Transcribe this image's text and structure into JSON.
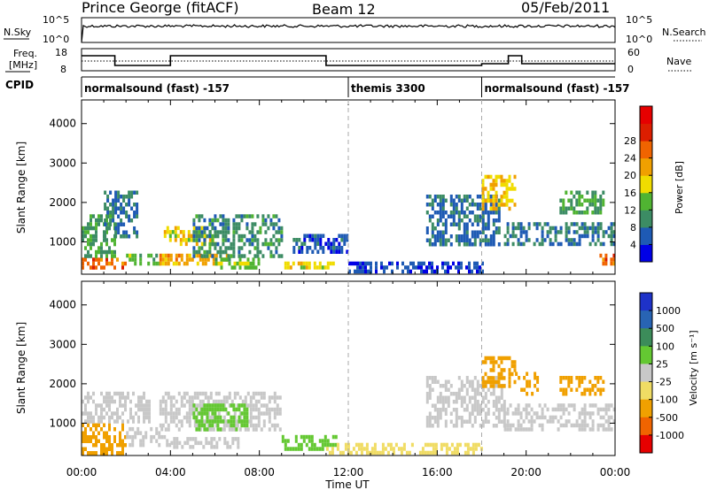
{
  "header": {
    "station": "Prince George (fitACF)",
    "beam": "Beam 12",
    "date": "05/Feb/2011"
  },
  "strip_labels": {
    "nsky": "N.Sky",
    "nsky_top": "10^5",
    "nsky_bottom": "10^0",
    "nsearch": "N.Search",
    "nsearch_top": "10^5",
    "nsearch_bottom": "10^0",
    "freq_1": "Freq.",
    "freq_2": "[MHz]",
    "freq_top": "18",
    "freq_bottom": "8",
    "nave": "Nave",
    "nave_top": "60",
    "nave_bottom": "0",
    "cpid": "CPID"
  },
  "cpid_segments": [
    {
      "start_h": 0,
      "end_h": 12,
      "label": "normalsound (fast) -157"
    },
    {
      "start_h": 12,
      "end_h": 18,
      "label": "themis 3300"
    },
    {
      "start_h": 18,
      "end_h": 24,
      "label": "normalsound (fast) -157"
    }
  ],
  "colors": {
    "power_scale": [
      "#0000e6",
      "#1e5ab4",
      "#3c8c64",
      "#50b432",
      "#f0dc00",
      "#f0a000",
      "#f06400",
      "#dc1e00",
      "#e60000"
    ],
    "velocity_scale": [
      "#1e32c8",
      "#2864b4",
      "#3c8c5a",
      "#64c832",
      "#c8c8c8",
      "#f0dc64",
      "#f0a000",
      "#f06400",
      "#e60000"
    ],
    "frequency_line": "#000000",
    "dashed_markers": "#aaaaaa"
  },
  "chart_data": [
    {
      "type": "heatmap",
      "panel": "power",
      "xlabel": "Time UT",
      "ylabel": "Slant Range [km]",
      "xlim": [
        0,
        24
      ],
      "ylim": [
        180,
        4600
      ],
      "x_ticks": [
        "00:00",
        "04:00",
        "08:00",
        "12:00",
        "16:00",
        "20:00",
        "00:00"
      ],
      "y_ticks": [
        "1000",
        "2000",
        "3000",
        "4000"
      ],
      "colorbar": {
        "label": "Power [dB]",
        "ticks": [
          "4",
          "8",
          "12",
          "16",
          "20",
          "24",
          "28"
        ],
        "range": [
          0,
          32
        ]
      },
      "regions": [
        {
          "t": [
            0.0,
            2.0
          ],
          "r": [
            300,
            600
          ],
          "v": 26
        },
        {
          "t": [
            0.0,
            1.5
          ],
          "r": [
            600,
            1700
          ],
          "v": 12
        },
        {
          "t": [
            1.0,
            2.5
          ],
          "r": [
            1100,
            2300
          ],
          "v": 8
        },
        {
          "t": [
            2.0,
            3.5
          ],
          "r": [
            400,
            700
          ],
          "v": 14
        },
        {
          "t": [
            3.5,
            6.5
          ],
          "r": [
            450,
            700
          ],
          "v": 22
        },
        {
          "t": [
            3.7,
            6.0
          ],
          "r": [
            900,
            1400
          ],
          "v": 18
        },
        {
          "t": [
            5.0,
            9.0
          ],
          "r": [
            600,
            1700
          ],
          "v": 10
        },
        {
          "t": [
            6.0,
            8.0
          ],
          "r": [
            300,
            600
          ],
          "v": 14
        },
        {
          "t": [
            9.0,
            11.5
          ],
          "r": [
            300,
            500
          ],
          "v": 18
        },
        {
          "t": [
            9.5,
            12.0
          ],
          "r": [
            700,
            1200
          ],
          "v": 6
        },
        {
          "t": [
            12.0,
            18.0
          ],
          "r": [
            200,
            500
          ],
          "v": 5
        },
        {
          "t": [
            15.5,
            18.8
          ],
          "r": [
            900,
            2200
          ],
          "v": 7
        },
        {
          "t": [
            18.0,
            19.5
          ],
          "r": [
            1800,
            2700
          ],
          "v": 20
        },
        {
          "t": [
            19.0,
            24.0
          ],
          "r": [
            900,
            1500
          ],
          "v": 8
        },
        {
          "t": [
            23.3,
            24.0
          ],
          "r": [
            400,
            700
          ],
          "v": 26
        },
        {
          "t": [
            21.5,
            23.5
          ],
          "r": [
            1700,
            2300
          ],
          "v": 12
        }
      ]
    },
    {
      "type": "heatmap",
      "panel": "velocity",
      "xlabel": "Time UT",
      "ylabel": "Slant Range [km]",
      "xlim": [
        0,
        24
      ],
      "ylim": [
        180,
        4600
      ],
      "x_ticks": [
        "00:00",
        "04:00",
        "08:00",
        "12:00",
        "16:00",
        "20:00",
        "00:00"
      ],
      "y_ticks": [
        "1000",
        "2000",
        "3000",
        "4000"
      ],
      "colorbar": {
        "label": "Velocity [m s⁻¹]",
        "ticks": [
          "1000",
          "500",
          "100",
          "25",
          "-25",
          "-100",
          "-500",
          "-1000"
        ]
      },
      "regions": [
        {
          "t": [
            0.0,
            2.0
          ],
          "r": [
            250,
            1000
          ],
          "v": -200
        },
        {
          "t": [
            0.0,
            3.0
          ],
          "r": [
            1000,
            1800
          ],
          "v": 0
        },
        {
          "t": [
            2.0,
            4.0
          ],
          "r": [
            400,
            900
          ],
          "v": 0
        },
        {
          "t": [
            3.5,
            9.0
          ],
          "r": [
            800,
            1800
          ],
          "v": 0
        },
        {
          "t": [
            4.0,
            7.0
          ],
          "r": [
            350,
            650
          ],
          "v": 0
        },
        {
          "t": [
            5.0,
            7.5
          ],
          "r": [
            800,
            1500
          ],
          "v": 60
        },
        {
          "t": [
            9.0,
            11.5
          ],
          "r": [
            300,
            700
          ],
          "v": 80
        },
        {
          "t": [
            11.0,
            18.0
          ],
          "r": [
            200,
            500
          ],
          "v": -40
        },
        {
          "t": [
            15.5,
            19.0
          ],
          "r": [
            900,
            2200
          ],
          "v": 0
        },
        {
          "t": [
            18.0,
            19.5
          ],
          "r": [
            1900,
            2700
          ],
          "v": -400
        },
        {
          "t": [
            19.5,
            20.5
          ],
          "r": [
            1700,
            2300
          ],
          "v": -300
        },
        {
          "t": [
            19.0,
            24.0
          ],
          "r": [
            800,
            1500
          ],
          "v": 0
        },
        {
          "t": [
            21.5,
            23.5
          ],
          "r": [
            1700,
            2200
          ],
          "v": -300
        }
      ]
    }
  ]
}
